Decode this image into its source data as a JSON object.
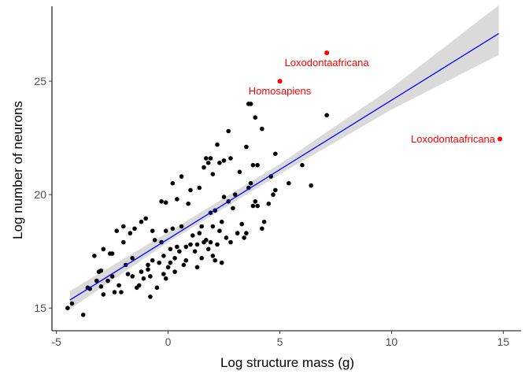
{
  "chart_data": {
    "type": "scatter",
    "title": "",
    "xlabel": "Log structure mass (g)",
    "ylabel": "Log number of neurons",
    "xlim": [
      -5.2,
      15.8
    ],
    "ylim": [
      14.0,
      28.3
    ],
    "x_ticks": [
      -5,
      0,
      5,
      10,
      15
    ],
    "y_ticks": [
      15,
      20,
      25
    ],
    "grid": false,
    "legend": "none",
    "colors": {
      "points": "#000000",
      "highlight": "#ff0000",
      "fit_line": "#0000ff",
      "ribbon": "#d3d3d3",
      "axis": "#000000"
    },
    "fit": {
      "x": [
        -4.4,
        14.8
      ],
      "y": [
        15.35,
        27.1
      ],
      "ci_x": [
        -4.4,
        0,
        5,
        10,
        14.8
      ],
      "ci_lower": [
        14.95,
        17.9,
        20.9,
        23.75,
        26.15
      ],
      "ci_upper": [
        15.75,
        18.35,
        21.35,
        24.7,
        28.35
      ]
    },
    "series": [
      {
        "points": [
          [
            -4.5,
            15.0
          ],
          [
            -4.3,
            15.2
          ],
          [
            -3.8,
            14.7
          ],
          [
            -3.6,
            15.9
          ],
          [
            -3.5,
            15.85
          ],
          [
            -3.3,
            17.3
          ],
          [
            -3.2,
            16.2
          ],
          [
            -3.1,
            16.6
          ],
          [
            -3.0,
            15.95
          ],
          [
            -3.0,
            16.65
          ],
          [
            -2.9,
            15.6
          ],
          [
            -2.9,
            17.6
          ],
          [
            -2.7,
            16.2
          ],
          [
            -2.6,
            17.4
          ],
          [
            -2.5,
            16.4
          ],
          [
            -2.5,
            17.4
          ],
          [
            -2.4,
            15.7
          ],
          [
            -2.3,
            18.4
          ],
          [
            -2.2,
            16.0
          ],
          [
            -2.1,
            15.7
          ],
          [
            -2.0,
            17.9
          ],
          [
            -2.0,
            18.6
          ],
          [
            -1.9,
            16.9
          ],
          [
            -1.8,
            16.5
          ],
          [
            -1.7,
            18.3
          ],
          [
            -1.6,
            16.4
          ],
          [
            -1.6,
            17.2
          ],
          [
            -1.5,
            18.5
          ],
          [
            -1.4,
            15.9
          ],
          [
            -1.3,
            16.0
          ],
          [
            -1.2,
            16.6
          ],
          [
            -1.2,
            18.8
          ],
          [
            -1.1,
            16.3
          ],
          [
            -1.0,
            18.95
          ],
          [
            -0.9,
            16.7
          ],
          [
            -0.9,
            16.9
          ],
          [
            -0.8,
            15.5
          ],
          [
            -0.8,
            16.4
          ],
          [
            -0.7,
            17.1
          ],
          [
            -0.7,
            18.4
          ],
          [
            -0.6,
            18.0
          ],
          [
            -0.5,
            15.9
          ],
          [
            -0.4,
            17.0
          ],
          [
            -0.3,
            17.9
          ],
          [
            -0.3,
            19.7
          ],
          [
            -0.2,
            16.5
          ],
          [
            -0.2,
            17.3
          ],
          [
            -0.1,
            16.3
          ],
          [
            -0.1,
            18.4
          ],
          [
            -0.1,
            19.65
          ],
          [
            0.0,
            16.8
          ],
          [
            0.1,
            17.0
          ],
          [
            0.1,
            17.6
          ],
          [
            0.2,
            18.5
          ],
          [
            0.2,
            20.5
          ],
          [
            0.3,
            16.6
          ],
          [
            0.3,
            17.2
          ],
          [
            0.4,
            17.7
          ],
          [
            0.4,
            19.8
          ],
          [
            0.5,
            17.5
          ],
          [
            0.6,
            18.6
          ],
          [
            0.6,
            20.8
          ],
          [
            0.7,
            16.9
          ],
          [
            0.8,
            17.1
          ],
          [
            0.8,
            17.7
          ],
          [
            0.9,
            19.6
          ],
          [
            1.0,
            17.8
          ],
          [
            1.0,
            20.2
          ],
          [
            1.1,
            18.2
          ],
          [
            1.2,
            17.5
          ],
          [
            1.3,
            16.8
          ],
          [
            1.3,
            17.8
          ],
          [
            1.4,
            18.3
          ],
          [
            1.4,
            20.3
          ],
          [
            1.5,
            17.2
          ],
          [
            1.5,
            18.6
          ],
          [
            1.6,
            17.9
          ],
          [
            1.6,
            21.2
          ],
          [
            1.7,
            18.0
          ],
          [
            1.7,
            21.6
          ],
          [
            1.8,
            17.6
          ],
          [
            1.8,
            21.4
          ],
          [
            1.9,
            17.9
          ],
          [
            1.9,
            19.2
          ],
          [
            1.9,
            21.6
          ],
          [
            2.0,
            17.3
          ],
          [
            2.0,
            18.6
          ],
          [
            2.0,
            20.9
          ],
          [
            2.1,
            17.1
          ],
          [
            2.1,
            19.3
          ],
          [
            2.2,
            17.8
          ],
          [
            2.2,
            22.2
          ],
          [
            2.3,
            18.4
          ],
          [
            2.3,
            21.4
          ],
          [
            2.4,
            17.0
          ],
          [
            2.4,
            18.8
          ],
          [
            2.5,
            19.9
          ],
          [
            2.5,
            21.5
          ],
          [
            2.6,
            18.1
          ],
          [
            2.7,
            19.7
          ],
          [
            2.7,
            22.8
          ],
          [
            2.8,
            17.9
          ],
          [
            2.8,
            21.6
          ],
          [
            2.9,
            19.4
          ],
          [
            3.0,
            20.0
          ],
          [
            3.1,
            18.3
          ],
          [
            3.2,
            21.0
          ],
          [
            3.3,
            18.7
          ],
          [
            3.4,
            18.1
          ],
          [
            3.5,
            18.3
          ],
          [
            3.5,
            22.1
          ],
          [
            3.6,
            20.3
          ],
          [
            3.6,
            24.0
          ],
          [
            3.7,
            20.5
          ],
          [
            3.7,
            24.0
          ],
          [
            3.8,
            19.5
          ],
          [
            3.8,
            21.3
          ],
          [
            3.9,
            19.7
          ],
          [
            3.9,
            23.4
          ],
          [
            4.0,
            19.5
          ],
          [
            4.0,
            21.3
          ],
          [
            4.2,
            18.5
          ],
          [
            4.2,
            22.9
          ],
          [
            4.3,
            18.8
          ],
          [
            4.5,
            19.6
          ],
          [
            4.6,
            20.8
          ],
          [
            4.7,
            20.0
          ],
          [
            4.8,
            20.2
          ],
          [
            4.8,
            21.8
          ],
          [
            5.4,
            20.5
          ],
          [
            6.0,
            21.3
          ],
          [
            6.4,
            20.4
          ],
          [
            7.1,
            23.5
          ]
        ]
      },
      {
        "points": [
          [
            7.1,
            26.25
          ],
          [
            5.0,
            25.0
          ],
          [
            14.85,
            22.45
          ]
        ]
      }
    ],
    "annotations": [
      {
        "text": "Loxodontaafricana",
        "x": 7.1,
        "y": 26.25,
        "anchor": "middle"
      },
      {
        "text": "Homosapiens",
        "x": 5.0,
        "y": 25.0,
        "anchor": "middle"
      },
      {
        "text": "Loxodontaafricana",
        "x": 14.85,
        "y": 22.45,
        "anchor": "end"
      }
    ]
  }
}
